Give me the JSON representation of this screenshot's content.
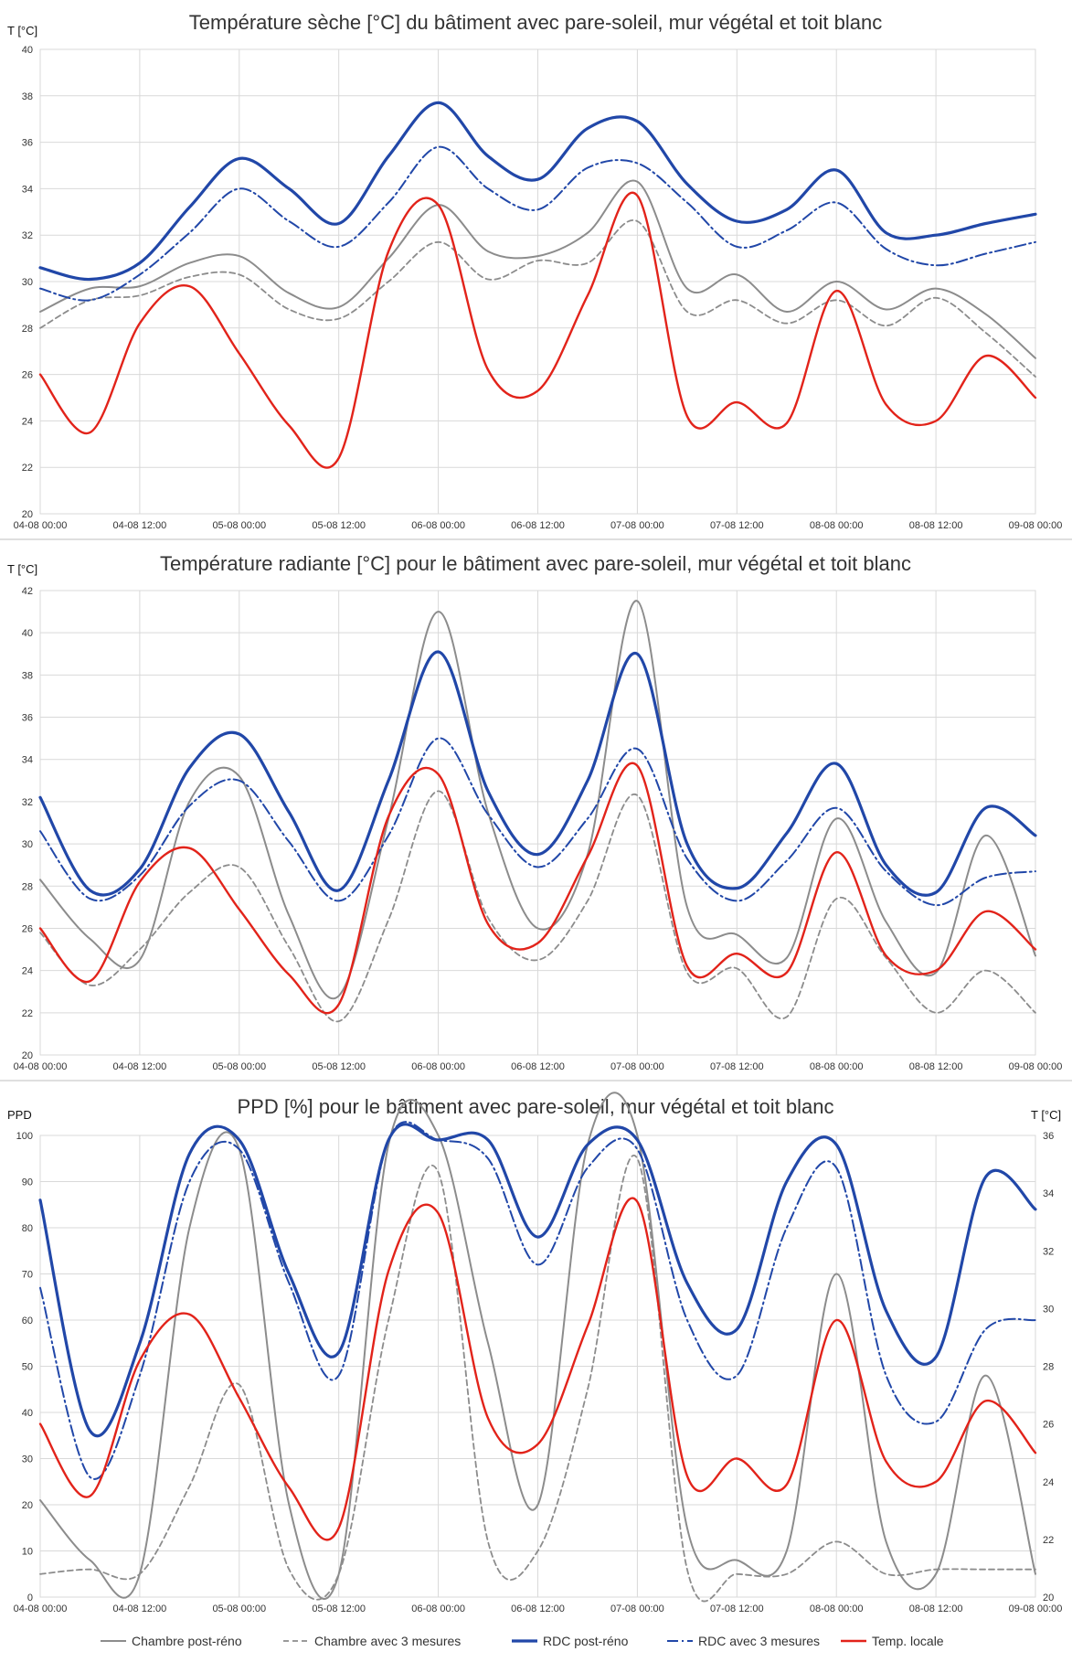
{
  "x_labels": [
    "04-08 00:00",
    "04-08 12:00",
    "05-08 00:00",
    "05-08 12:00",
    "06-08 00:00",
    "06-08 12:00",
    "07-08 00:00",
    "07-08 12:00",
    "08-08 00:00",
    "08-08 12:00",
    "09-08 00:00"
  ],
  "series_styles": [
    {
      "key": "chambre",
      "name": "Chambre post-réno",
      "color": "#8c8c8c",
      "width": 2,
      "dash": ""
    },
    {
      "key": "chambre3",
      "name": "Chambre avec 3 mesures",
      "color": "#8c8c8c",
      "width": 1.8,
      "dash": "6 4"
    },
    {
      "key": "rdc",
      "name": "RDC post-réno",
      "color": "#2147a8",
      "width": 3.2,
      "dash": ""
    },
    {
      "key": "rdc3",
      "name": "RDC avec 3 mesures",
      "color": "#2147a8",
      "width": 2,
      "dash": "12 4 2 4"
    },
    {
      "key": "local",
      "name": "Temp. locale",
      "color": "#e2231a",
      "width": 2.4,
      "dash": ""
    }
  ],
  "chart_data": [
    {
      "type": "line",
      "title": "Température sèche [°C] du bâtiment avec pare-soleil, mur végétal et toit blanc",
      "ylabel": "T [°C]",
      "ylim": [
        20,
        40
      ],
      "yticks": [
        "20",
        "22",
        "24",
        "26",
        "28",
        "30",
        "32",
        "34",
        "36",
        "38",
        "40"
      ],
      "x_hours": [
        0,
        6,
        12,
        18,
        24,
        30,
        36,
        42,
        48,
        54,
        60,
        66,
        72,
        78,
        84,
        90,
        96,
        102,
        108,
        114,
        120
      ],
      "series": [
        {
          "name": "Chambre post-réno",
          "values": [
            28.7,
            29.7,
            29.8,
            30.8,
            31.1,
            29.5,
            28.9,
            31.0,
            33.3,
            31.3,
            31.1,
            32.1,
            34.3,
            29.7,
            30.3,
            28.7,
            30.0,
            28.8,
            29.7,
            28.6,
            26.7
          ]
        },
        {
          "name": "Chambre avec 3 mesures",
          "values": [
            28.0,
            29.2,
            29.4,
            30.2,
            30.3,
            28.8,
            28.4,
            30.0,
            31.7,
            30.1,
            30.9,
            30.8,
            32.6,
            28.7,
            29.2,
            28.2,
            29.2,
            28.1,
            29.3,
            27.8,
            25.9
          ]
        },
        {
          "name": "RDC post-réno",
          "values": [
            30.6,
            30.1,
            30.8,
            33.2,
            35.3,
            34.0,
            32.5,
            35.4,
            37.7,
            35.4,
            34.4,
            36.6,
            36.9,
            34.2,
            32.6,
            33.1,
            34.8,
            32.1,
            32.0,
            32.5,
            32.9
          ]
        },
        {
          "name": "RDC avec 3 mesures",
          "values": [
            29.7,
            29.2,
            30.3,
            32.1,
            34.0,
            32.6,
            31.5,
            33.4,
            35.8,
            34.0,
            33.1,
            34.9,
            35.1,
            33.4,
            31.5,
            32.2,
            33.4,
            31.4,
            30.7,
            31.2,
            31.7
          ]
        },
        {
          "name": "Temp. locale",
          "values": [
            26.0,
            23.5,
            28.2,
            29.8,
            26.9,
            23.8,
            22.4,
            31.3,
            33.3,
            26.2,
            25.3,
            29.4,
            33.7,
            24.2,
            24.8,
            23.9,
            29.6,
            24.7,
            24.0,
            26.8,
            25.0
          ]
        }
      ]
    },
    {
      "type": "line",
      "title": "Température radiante [°C] pour le bâtiment avec pare-soleil, mur végétal et toit blanc",
      "ylabel": "T [°C]",
      "ylim": [
        20,
        42
      ],
      "yticks": [
        "20",
        "22",
        "24",
        "26",
        "28",
        "30",
        "32",
        "34",
        "36",
        "38",
        "40",
        "42"
      ],
      "x_hours": [
        0,
        6,
        12,
        18,
        24,
        30,
        36,
        42,
        48,
        54,
        60,
        66,
        72,
        78,
        84,
        90,
        96,
        102,
        108,
        114,
        120
      ],
      "series": [
        {
          "name": "Chambre post-réno",
          "values": [
            28.3,
            25.5,
            24.5,
            32.0,
            33.2,
            26.6,
            22.8,
            31.2,
            41.0,
            31.5,
            26.0,
            29.5,
            41.5,
            27.0,
            25.7,
            24.6,
            31.2,
            26.3,
            23.9,
            30.4,
            24.7
          ]
        },
        {
          "name": "Chambre avec 3 mesures",
          "values": [
            25.8,
            23.3,
            25.0,
            27.7,
            28.9,
            25.1,
            21.6,
            26.4,
            32.5,
            26.5,
            24.5,
            27.3,
            32.3,
            23.9,
            24.1,
            21.8,
            27.4,
            24.6,
            22.0,
            24.0,
            22.0
          ]
        },
        {
          "name": "RDC post-réno",
          "values": [
            32.2,
            27.8,
            28.8,
            33.6,
            35.2,
            31.5,
            27.8,
            33.0,
            39.1,
            32.5,
            29.5,
            33.0,
            39.0,
            30.0,
            27.9,
            30.5,
            33.8,
            29.0,
            27.7,
            31.7,
            30.4
          ]
        },
        {
          "name": "RDC avec 3 mesures",
          "values": [
            30.6,
            27.4,
            28.5,
            31.8,
            33.0,
            30.1,
            27.3,
            30.4,
            35.0,
            31.4,
            28.9,
            31.2,
            34.5,
            29.3,
            27.3,
            29.2,
            31.7,
            28.7,
            27.1,
            28.4,
            28.7
          ]
        },
        {
          "name": "Temp. locale",
          "values": [
            26.0,
            23.5,
            28.2,
            29.8,
            26.9,
            23.8,
            22.4,
            31.3,
            33.3,
            26.2,
            25.3,
            29.4,
            33.7,
            24.2,
            24.8,
            23.9,
            29.6,
            24.7,
            24.0,
            26.8,
            25.0
          ]
        }
      ]
    },
    {
      "type": "line",
      "title": "PPD [%] pour le bâtiment avec pare-soleil, mur végétal et toit blanc",
      "ylabel": "PPD",
      "y2label": "T [°C]",
      "ylim": [
        0,
        100
      ],
      "y2lim": [
        20,
        36
      ],
      "yticks": [
        "0",
        "10",
        "20",
        "30",
        "40",
        "50",
        "60",
        "70",
        "80",
        "90",
        "100"
      ],
      "y2ticks": [
        "20",
        "22",
        "24",
        "26",
        "28",
        "30",
        "32",
        "34",
        "36"
      ],
      "x_hours": [
        0,
        6,
        12,
        18,
        24,
        30,
        36,
        42,
        48,
        54,
        60,
        66,
        72,
        78,
        84,
        90,
        96,
        102,
        108,
        114,
        120
      ],
      "series": [
        {
          "name": "Chambre post-réno",
          "values": [
            21,
            8,
            5,
            80,
            97,
            20,
            5,
            98,
            100,
            55,
            20,
            98,
            100,
            15,
            8,
            10,
            70,
            12,
            5,
            48,
            5
          ]
        },
        {
          "name": "Chambre avec 3 mesures",
          "values": [
            5,
            6,
            5,
            24,
            46,
            6,
            5,
            60,
            92,
            12,
            10,
            45,
            95,
            6,
            5,
            5,
            12,
            5,
            6,
            6,
            6
          ]
        },
        {
          "name": "RDC post-réno",
          "values": [
            86,
            36,
            55,
            96,
            99,
            70,
            53,
            99,
            99,
            99,
            78,
            98,
            99,
            68,
            58,
            90,
            98,
            62,
            52,
            91,
            84
          ]
        },
        {
          "name": "RDC avec 3 mesures",
          "values": [
            67,
            26,
            48,
            90,
            97,
            68,
            48,
            99,
            99,
            95,
            72,
            93,
            97,
            60,
            48,
            80,
            93,
            48,
            38,
            58,
            60
          ]
        },
        {
          "name": "Temp. locale",
          "values": [
            26.0,
            23.5,
            28.2,
            29.8,
            26.9,
            23.8,
            22.4,
            31.3,
            33.3,
            26.2,
            25.3,
            29.4,
            33.7,
            24.2,
            24.8,
            23.9,
            29.6,
            24.7,
            24.0,
            26.8,
            25.0
          ],
          "axis": "right"
        }
      ]
    }
  ]
}
